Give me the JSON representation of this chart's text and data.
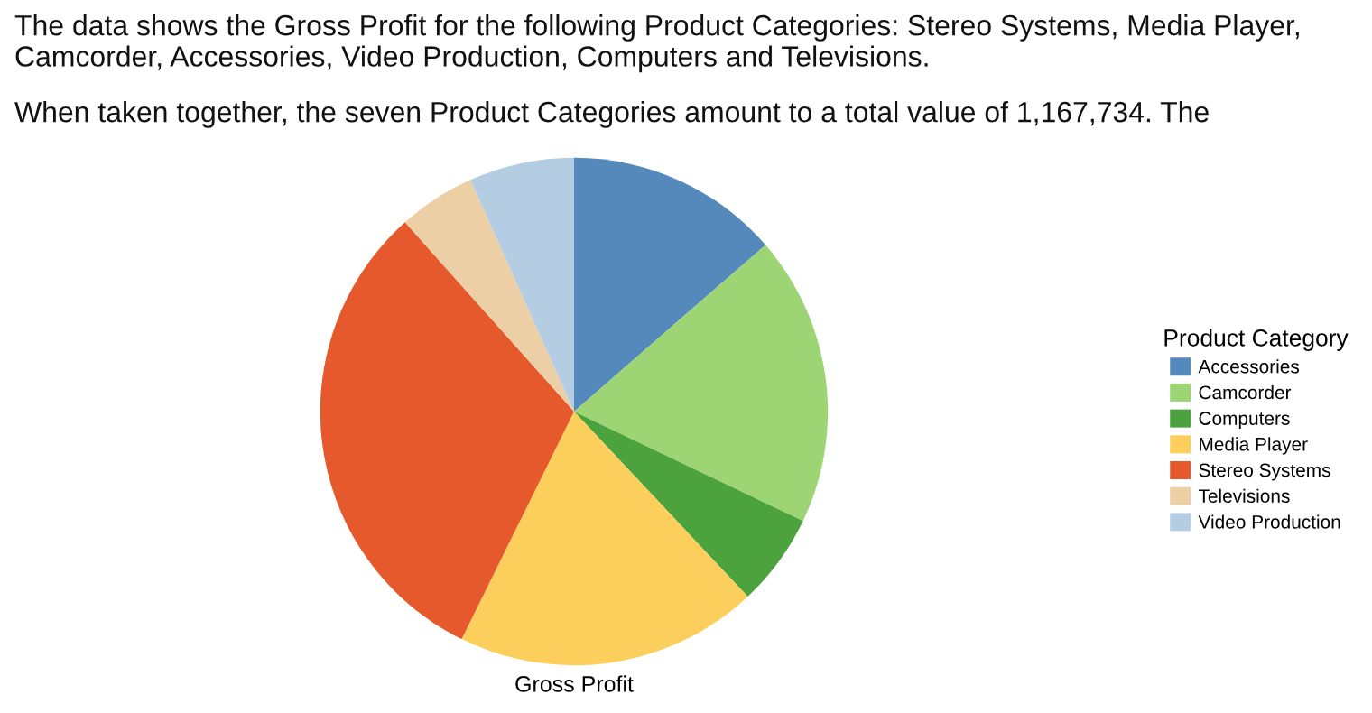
{
  "chart_data": {
    "type": "pie",
    "xlabel": "Gross Profit",
    "legend_title": "Product Category",
    "legend": "right",
    "categories": [
      "Accessories",
      "Camcorder",
      "Computers",
      "Media Player",
      "Stereo Systems",
      "Televisions",
      "Video Production"
    ],
    "values": [
      13.6,
      18.5,
      5.9,
      19.3,
      31.1,
      4.9,
      6.7
    ],
    "colors": [
      "#5589bc",
      "#9dd574",
      "#4ca33e",
      "#fccf5d",
      "#e5592d",
      "#eccfa5",
      "#b5cde3"
    ],
    "annotations": [
      "The data shows the Gross Profit for the following Product Categories: Stereo Systems, Media Player, Camcorder, Accessories, Video Production, Computers and Televisions.",
      "When taken together, the seven Product Categories amount to a total value of 1,167,734. The"
    ]
  }
}
